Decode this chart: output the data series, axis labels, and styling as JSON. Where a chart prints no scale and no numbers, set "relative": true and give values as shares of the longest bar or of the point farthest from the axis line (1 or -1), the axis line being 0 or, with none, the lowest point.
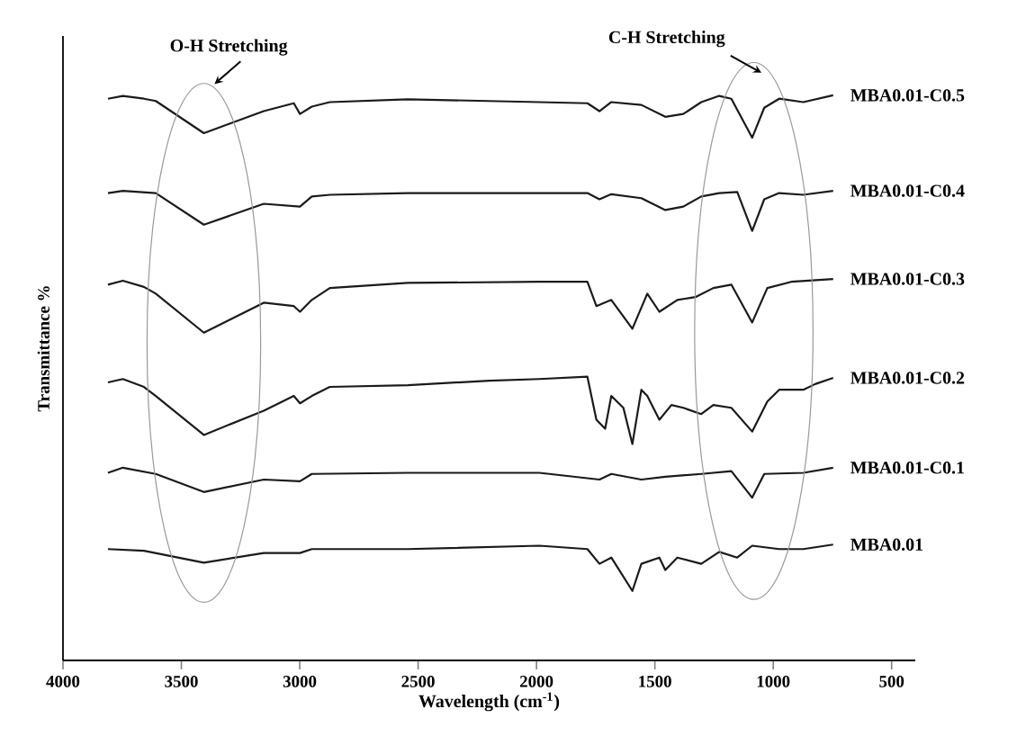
{
  "chart_data": {
    "type": "line",
    "xlabel": "Wavelength (cm$^{-1}$)",
    "ylabel": "Transmittance %",
    "xlim": [
      4000,
      400
    ],
    "xticks": [
      4000,
      3500,
      3000,
      2500,
      2000,
      1500,
      1000,
      500
    ],
    "relative": true,
    "marker": "none",
    "line_style": "solid",
    "annotations": [
      "O-H Stretching",
      "C-H Stretching"
    ],
    "series": [
      {
        "name": "MBA0.01-C0.5",
        "color": "#1a1a1a",
        "x": [
          3810,
          3747,
          3658,
          3608,
          3405,
          3152,
          3025,
          2999,
          2949,
          2873,
          2544,
          1988,
          1785,
          1734,
          1684,
          1557,
          1456,
          1380,
          1304,
          1228,
          1177,
          1089,
          1038,
          975,
          873,
          747
        ],
        "values": [
          0.994,
          0.999,
          0.994,
          0.99,
          0.933,
          0.972,
          0.986,
          0.967,
          0.98,
          0.988,
          0.993,
          0.988,
          0.986,
          0.972,
          0.988,
          0.983,
          0.962,
          0.967,
          0.988,
          0.999,
          0.994,
          0.925,
          0.978,
          0.994,
          0.988,
          1.0
        ]
      },
      {
        "name": "MBA0.01-C0.4",
        "color": "#1a1a1a",
        "x": [
          3810,
          3747,
          3608,
          3405,
          3152,
          2999,
          2949,
          2873,
          2544,
          1988,
          1785,
          1734,
          1684,
          1557,
          1456,
          1380,
          1304,
          1228,
          1152,
          1089,
          1038,
          975,
          873,
          747
        ],
        "values": [
          0.827,
          0.831,
          0.827,
          0.771,
          0.808,
          0.803,
          0.821,
          0.824,
          0.827,
          0.827,
          0.827,
          0.816,
          0.825,
          0.818,
          0.797,
          0.803,
          0.821,
          0.827,
          0.829,
          0.76,
          0.816,
          0.827,
          0.824,
          0.831
        ]
      },
      {
        "name": "MBA0.01-C0.3",
        "color": "#1a1a1a",
        "x": [
          3810,
          3747,
          3658,
          3608,
          3405,
          3152,
          3025,
          2999,
          2949,
          2873,
          2544,
          1988,
          1785,
          1747,
          1684,
          1595,
          1532,
          1481,
          1405,
          1329,
          1253,
          1177,
          1089,
          1025,
          924,
          747
        ],
        "values": [
          0.665,
          0.672,
          0.661,
          0.649,
          0.58,
          0.633,
          0.627,
          0.617,
          0.638,
          0.659,
          0.668,
          0.67,
          0.67,
          0.627,
          0.638,
          0.587,
          0.649,
          0.617,
          0.638,
          0.643,
          0.659,
          0.665,
          0.598,
          0.659,
          0.67,
          0.675
        ]
      },
      {
        "name": "MBA0.01-C0.2",
        "color": "#1a1a1a",
        "x": [
          3810,
          3747,
          3658,
          3608,
          3405,
          3152,
          3025,
          2999,
          2949,
          2873,
          2544,
          2200,
          1988,
          1785,
          1747,
          1710,
          1684,
          1633,
          1595,
          1557,
          1532,
          1481,
          1430,
          1380,
          1304,
          1253,
          1177,
          1089,
          1025,
          975,
          873,
          823,
          747
        ],
        "values": [
          0.492,
          0.498,
          0.484,
          0.468,
          0.399,
          0.442,
          0.468,
          0.455,
          0.468,
          0.484,
          0.487,
          0.495,
          0.498,
          0.502,
          0.426,
          0.41,
          0.468,
          0.447,
          0.383,
          0.479,
          0.468,
          0.426,
          0.452,
          0.447,
          0.436,
          0.452,
          0.447,
          0.405,
          0.458,
          0.479,
          0.479,
          0.489,
          0.5
        ]
      },
      {
        "name": "MBA0.01-C0.1",
        "color": "#1a1a1a",
        "x": [
          3810,
          3747,
          3608,
          3405,
          3152,
          2999,
          2949,
          2544,
          1988,
          1734,
          1684,
          1557,
          1456,
          1304,
          1177,
          1089,
          1038,
          873,
          747
        ],
        "values": [
          0.332,
          0.341,
          0.33,
          0.298,
          0.32,
          0.317,
          0.33,
          0.332,
          0.332,
          0.32,
          0.33,
          0.32,
          0.325,
          0.33,
          0.335,
          0.288,
          0.33,
          0.332,
          0.341
        ]
      },
      {
        "name": "MBA0.01",
        "color": "#1a1a1a",
        "x": [
          3810,
          3658,
          3405,
          3152,
          2999,
          2949,
          2544,
          1988,
          1785,
          1734,
          1684,
          1595,
          1557,
          1481,
          1456,
          1405,
          1304,
          1228,
          1152,
          1089,
          975,
          873,
          747
        ],
        "values": [
          0.197,
          0.194,
          0.173,
          0.19,
          0.19,
          0.197,
          0.197,
          0.203,
          0.197,
          0.171,
          0.182,
          0.123,
          0.171,
          0.182,
          0.16,
          0.182,
          0.171,
          0.192,
          0.182,
          0.203,
          0.197,
          0.197,
          0.205
        ]
      }
    ]
  }
}
